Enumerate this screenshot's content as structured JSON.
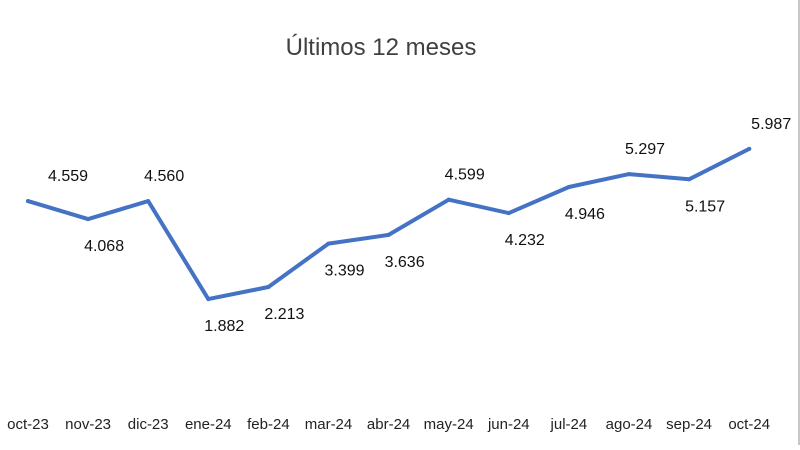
{
  "chart_data": {
    "type": "line",
    "title": "Últimos 12 meses",
    "xlabel": "",
    "ylabel": "",
    "categories": [
      "oct-23",
      "nov-23",
      "dic-23",
      "ene-24",
      "feb-24",
      "mar-24",
      "abr-24",
      "may-24",
      "jun-24",
      "jul-24",
      "ago-24",
      "sep-24",
      "oct-24"
    ],
    "values": [
      4.559,
      4.068,
      4.56,
      1.882,
      2.213,
      3.399,
      3.636,
      4.599,
      4.232,
      4.946,
      5.297,
      5.157,
      5.987
    ],
    "data_labels": [
      "4.559",
      "4.068",
      "4.560",
      "1.882",
      "2.213",
      "3.399",
      "3.636",
      "4.599",
      "4.232",
      "4.946",
      "5.297",
      "5.157",
      "5.987"
    ],
    "ylim": [
      0,
      7
    ],
    "grid": false,
    "legend": "none",
    "line_color": "#4472C4"
  }
}
